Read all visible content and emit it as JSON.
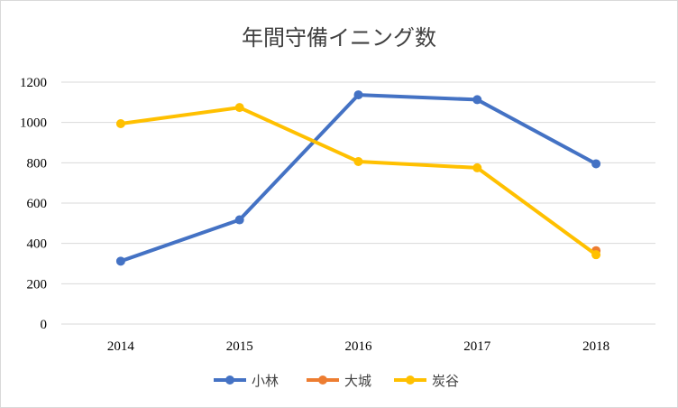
{
  "chart_data": {
    "type": "line",
    "title": "年間守備イニング数",
    "categories": [
      "2014",
      "2015",
      "2016",
      "2017",
      "2018"
    ],
    "ylim": [
      0,
      1200
    ],
    "yticks": [
      0,
      200,
      400,
      600,
      800,
      1000,
      1200
    ],
    "grid": true,
    "legend_position": "bottom",
    "series": [
      {
        "name": "小林",
        "color": "#4472c4",
        "values": [
          312,
          517,
          1137,
          1113,
          795
        ]
      },
      {
        "name": "大城",
        "color": "#ed7d31",
        "values": [
          null,
          null,
          null,
          null,
          364
        ]
      },
      {
        "name": "炭谷",
        "color": "#ffc000",
        "values": [
          994,
          1074,
          806,
          775,
          344
        ]
      }
    ]
  }
}
